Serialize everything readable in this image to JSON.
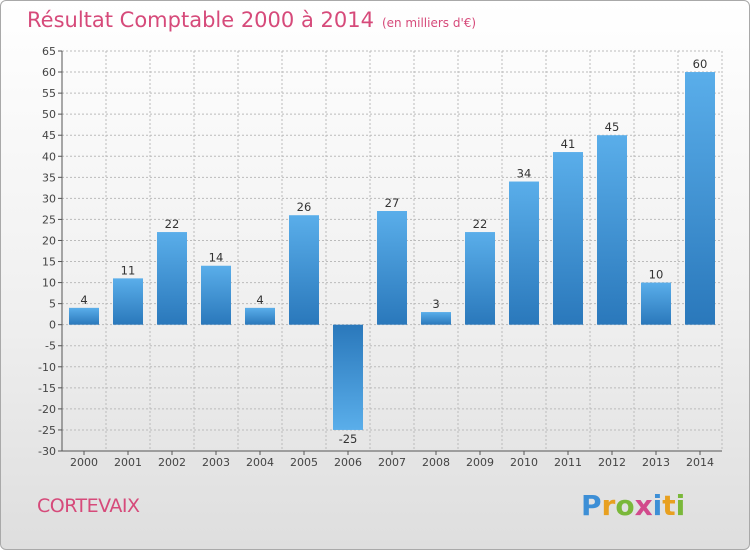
{
  "header": {
    "title": "Résultat Comptable 2000 à 2014",
    "unit": "(en milliers d'€)"
  },
  "footer": {
    "town": "CORTEVAIX",
    "brand_letters": [
      "P",
      "r",
      "o",
      "x",
      "i",
      "t",
      "i"
    ],
    "brand_colors": [
      "#3d8fd6",
      "#e8a020",
      "#7ab83a",
      "#d24a8c",
      "#3d8fd6",
      "#e8a020",
      "#7ab83a"
    ]
  },
  "chart_data": {
    "type": "bar",
    "title": "Résultat Comptable 2000 à 2014",
    "subtitle": "(en milliers d'€)",
    "xlabel": "",
    "ylabel": "",
    "categories": [
      "2000",
      "2001",
      "2002",
      "2003",
      "2004",
      "2005",
      "2006",
      "2007",
      "2008",
      "2009",
      "2010",
      "2011",
      "2012",
      "2013",
      "2014"
    ],
    "values": [
      4,
      11,
      22,
      14,
      4,
      26,
      -25,
      27,
      3,
      22,
      34,
      41,
      45,
      10,
      60
    ],
    "ylim": [
      -30,
      65
    ],
    "yticks": [
      -30,
      -25,
      -20,
      -15,
      -10,
      -5,
      0,
      5,
      10,
      15,
      20,
      25,
      30,
      35,
      40,
      45,
      50,
      55,
      60,
      65
    ],
    "grid": true,
    "colors": {
      "bar_light": "#5aaeea",
      "bar_dark": "#2a78bb",
      "grid": "#bbbbbb"
    }
  }
}
